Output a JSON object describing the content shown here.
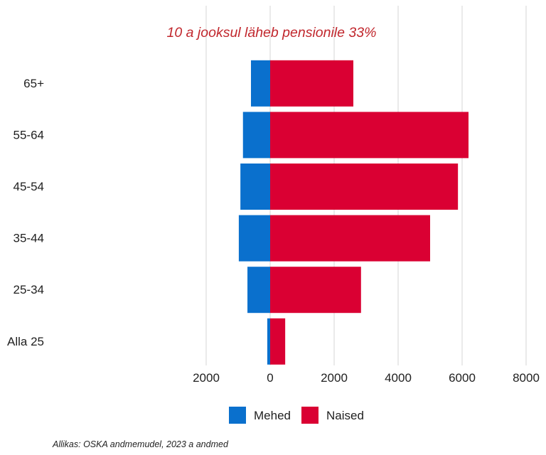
{
  "chart_data": {
    "type": "bar",
    "title": "10 a jooksul läheb pensionile 33%",
    "xlabel": "",
    "ylabel": "",
    "categories": [
      "65+",
      "55-64",
      "45-54",
      "35-44",
      "25-34",
      "Alla 25"
    ],
    "series": [
      {
        "name": "Mehed",
        "color": "#0a70cd",
        "values": [
          600,
          850,
          930,
          980,
          710,
          90
        ]
      },
      {
        "name": "Naised",
        "color": "#da0033",
        "values": [
          2600,
          6200,
          5870,
          5000,
          2840,
          470
        ]
      }
    ],
    "xlim": [
      -2000,
      8000
    ],
    "xticks": [
      -2000,
      0,
      2000,
      4000,
      6000,
      8000
    ],
    "xtick_labels": [
      "2000",
      "0",
      "2000",
      "4000",
      "6000",
      "8000"
    ],
    "grid": true,
    "legend_position": "bottom"
  },
  "source_note": "Allikas: OSKA andmemudel, 2023 a andmed",
  "colors": {
    "title": "#c1272d",
    "grid": "#e4e4e4",
    "text": "#1f1f1f",
    "background": "#ffffff"
  }
}
